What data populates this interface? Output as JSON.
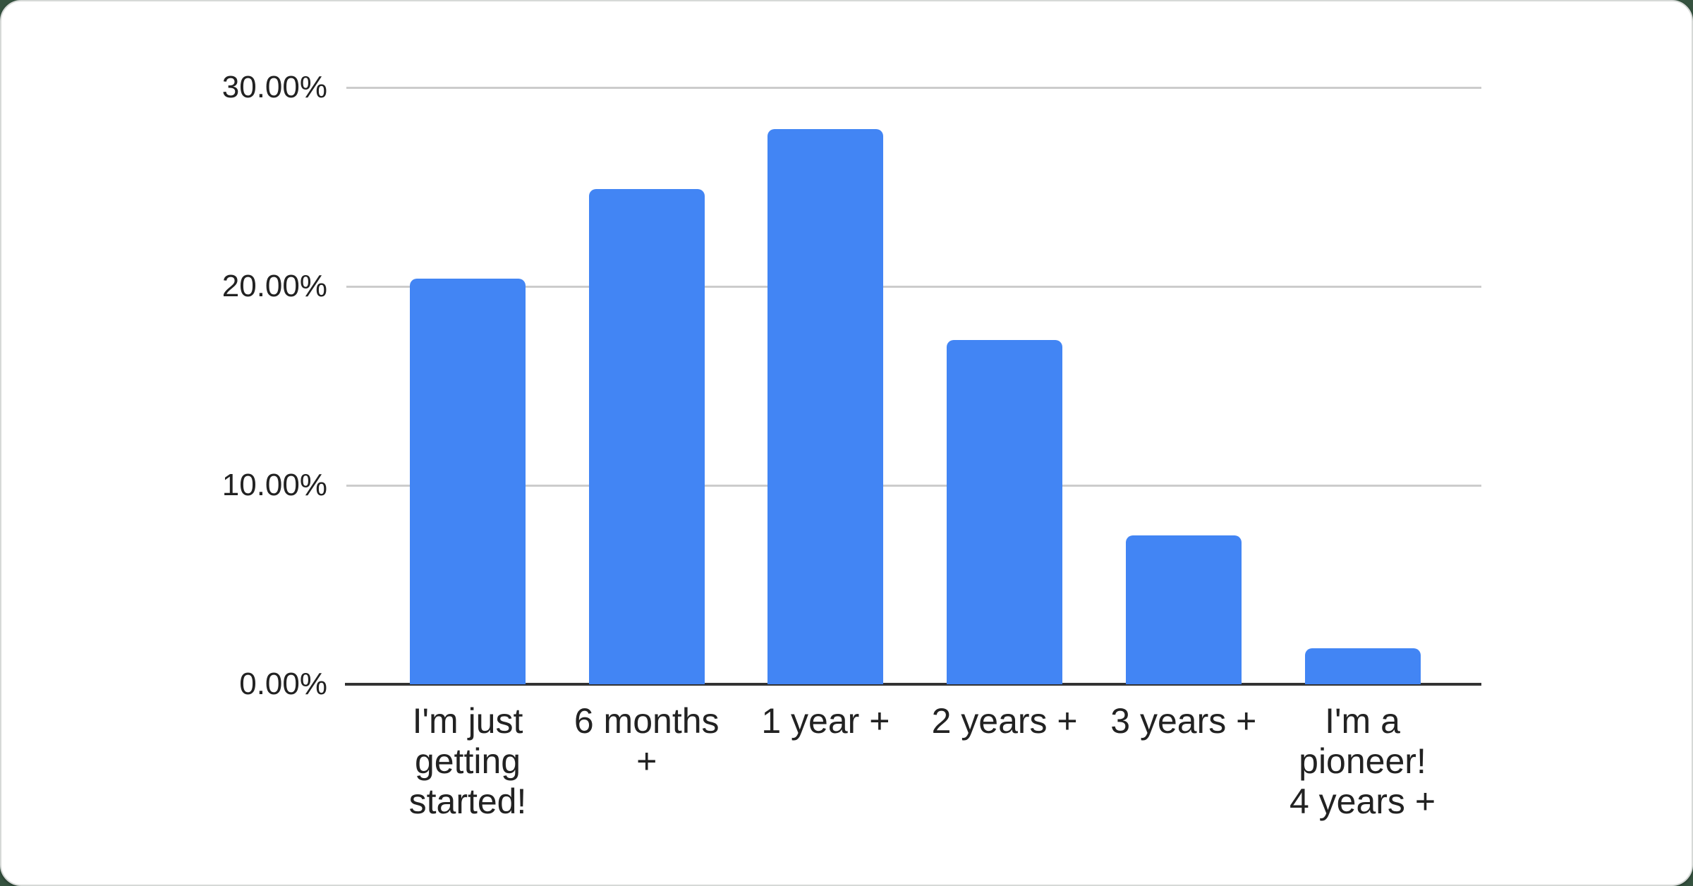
{
  "page": {
    "background_color": "#35523f",
    "card_background_color": "#ffffff",
    "card_border_color": "#d6d9d7"
  },
  "chart_data": {
    "type": "bar",
    "title": "",
    "xlabel": "",
    "ylabel": "",
    "categories": [
      "I'm just getting started!",
      "6 months +",
      "1 year +",
      "2 years +",
      "3 years +",
      "I'm a pioneer! 4 years +"
    ],
    "category_display_lines": [
      [
        "I'm just",
        "getting",
        "started!"
      ],
      [
        "6 months",
        "+"
      ],
      [
        "1 year +"
      ],
      [
        "2 years +"
      ],
      [
        "3 years +"
      ],
      [
        "I'm a",
        "pioneer!",
        "4 years +"
      ]
    ],
    "values": [
      20.4,
      24.9,
      27.9,
      17.3,
      7.5,
      1.8
    ],
    "value_unit": "%",
    "ylim": [
      0,
      30
    ],
    "yticks": [
      0,
      10,
      20,
      30
    ],
    "ytick_labels": [
      "0.00%",
      "10.00%",
      "20.00%",
      "30.00%"
    ],
    "grid": "horizontal",
    "legend_position": "none",
    "bar_color": "#4285F4",
    "gridline_color": "#cccccc",
    "axis_line_color": "#333333",
    "text_color": "#222222"
  }
}
